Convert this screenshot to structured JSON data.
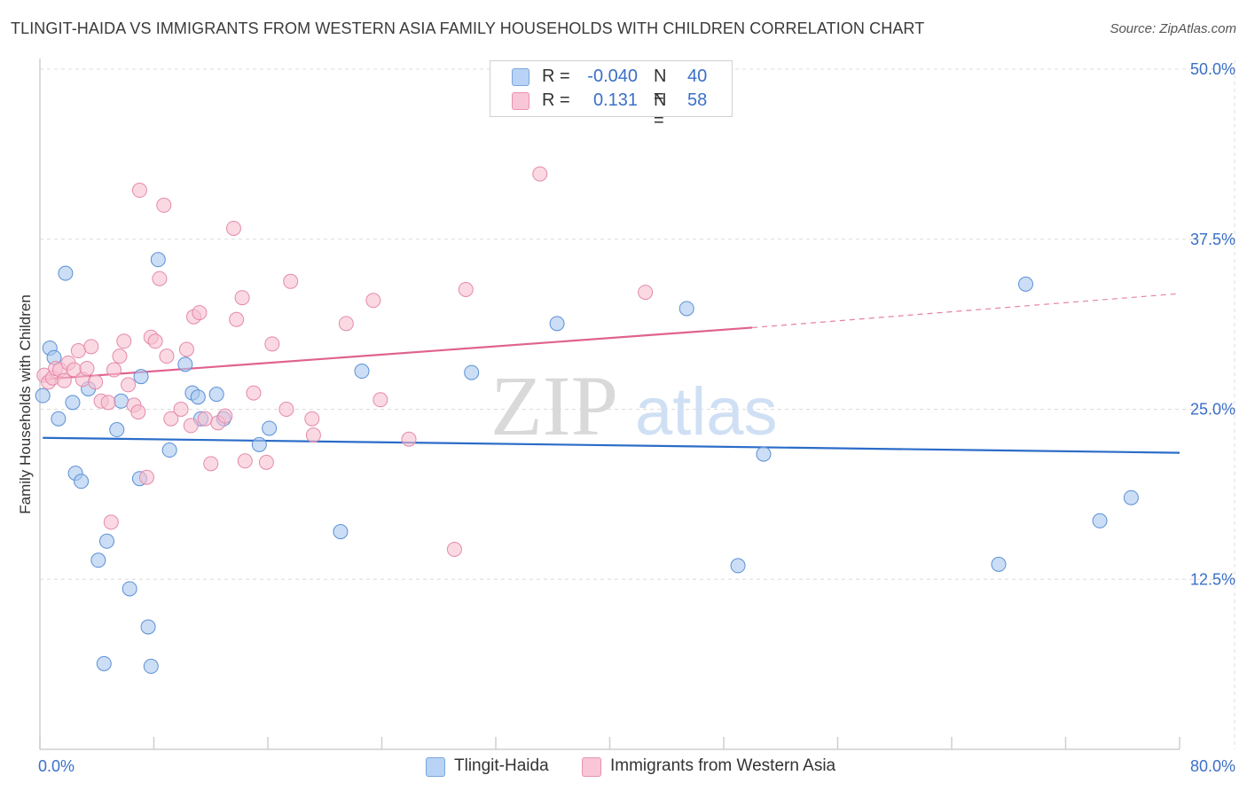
{
  "chart_data": {
    "type": "scatter",
    "title": "TLINGIT-HAIDA VS IMMIGRANTS FROM WESTERN ASIA FAMILY HOUSEHOLDS WITH CHILDREN CORRELATION CHART",
    "source": "Source: ZipAtlas.com",
    "ylabel": "Family Households with Children",
    "xlabel": "",
    "xlim": [
      0,
      80
    ],
    "ylim": [
      0,
      50
    ],
    "x_tick_labels": {
      "min": "0.0%",
      "max": "80.0%"
    },
    "y_ticks": [
      {
        "value": 12.5,
        "label": "12.5%"
      },
      {
        "value": 25.0,
        "label": "25.0%"
      },
      {
        "value": 37.5,
        "label": "37.5%"
      },
      {
        "value": 50.0,
        "label": "50.0%"
      }
    ],
    "watermark": {
      "zip": "ZIP",
      "atlas": "atlas"
    },
    "legend_stats": [
      {
        "r_label": "R =",
        "r_value": "-0.040",
        "n_label": "N =",
        "n_value": "40",
        "color": "#b8d3f5",
        "border": "#7aa6dd"
      },
      {
        "r_label": "R =",
        "r_value": "0.131",
        "n_label": "N =",
        "n_value": "58",
        "color": "#f8c6d6",
        "border": "#e893b0"
      }
    ],
    "series": [
      {
        "name": "Tlingit-Haida",
        "color": "#a9c8ee",
        "stroke": "#5b8fd6",
        "line_color": "#2b6cc8",
        "trend": {
          "x0": 0.2,
          "y0": 22.9,
          "x1": 80.0,
          "y1": 21.8,
          "dashed_from": null
        },
        "points": [
          [
            0.2,
            26.0
          ],
          [
            0.7,
            29.5
          ],
          [
            1.0,
            28.8
          ],
          [
            1.3,
            24.3
          ],
          [
            1.8,
            35.0
          ],
          [
            2.3,
            25.5
          ],
          [
            2.5,
            20.3
          ],
          [
            2.9,
            19.7
          ],
          [
            3.4,
            26.5
          ],
          [
            4.1,
            13.9
          ],
          [
            4.7,
            15.3
          ],
          [
            5.4,
            23.5
          ],
          [
            5.7,
            25.6
          ],
          [
            6.3,
            11.8
          ],
          [
            7.0,
            19.9
          ],
          [
            7.1,
            27.4
          ],
          [
            7.6,
            9.0
          ],
          [
            7.8,
            6.1
          ],
          [
            8.3,
            36.0
          ],
          [
            9.1,
            22.0
          ],
          [
            10.2,
            28.3
          ],
          [
            10.7,
            26.2
          ],
          [
            11.1,
            25.9
          ],
          [
            11.3,
            24.3
          ],
          [
            12.4,
            26.1
          ],
          [
            12.9,
            24.3
          ],
          [
            15.4,
            22.4
          ],
          [
            16.1,
            23.6
          ],
          [
            21.1,
            16.0
          ],
          [
            22.6,
            27.8
          ],
          [
            30.3,
            27.7
          ],
          [
            36.3,
            31.3
          ],
          [
            45.4,
            32.4
          ],
          [
            49.0,
            13.5
          ],
          [
            50.8,
            21.7
          ],
          [
            67.3,
            13.6
          ],
          [
            69.2,
            34.2
          ],
          [
            74.4,
            16.8
          ],
          [
            76.6,
            18.5
          ],
          [
            4.5,
            6.3
          ]
        ]
      },
      {
        "name": "Immigrants from Western Asia",
        "color": "#f7bfd1",
        "stroke": "#e58aaa",
        "line_color": "#e0628f",
        "trend": {
          "x0": 0.2,
          "y0": 27.2,
          "x1": 50.0,
          "y1": 31.0,
          "dashed_from": 50.0,
          "x2": 80.0,
          "y2": 33.5
        },
        "points": [
          [
            0.3,
            27.5
          ],
          [
            0.6,
            27.0
          ],
          [
            0.9,
            27.3
          ],
          [
            1.1,
            28.0
          ],
          [
            1.4,
            27.9
          ],
          [
            1.7,
            27.1
          ],
          [
            2.0,
            28.4
          ],
          [
            2.4,
            27.9
          ],
          [
            2.7,
            29.3
          ],
          [
            3.0,
            27.2
          ],
          [
            3.3,
            28.0
          ],
          [
            3.6,
            29.6
          ],
          [
            3.9,
            27.0
          ],
          [
            4.3,
            25.6
          ],
          [
            4.8,
            25.5
          ],
          [
            5.0,
            16.7
          ],
          [
            5.2,
            27.9
          ],
          [
            5.6,
            28.9
          ],
          [
            5.9,
            30.0
          ],
          [
            6.2,
            26.8
          ],
          [
            6.6,
            25.3
          ],
          [
            6.9,
            24.8
          ],
          [
            7.0,
            41.1
          ],
          [
            7.5,
            20.0
          ],
          [
            7.8,
            30.3
          ],
          [
            8.1,
            30.0
          ],
          [
            8.4,
            34.6
          ],
          [
            8.7,
            40.0
          ],
          [
            8.9,
            28.9
          ],
          [
            9.2,
            24.3
          ],
          [
            9.9,
            25.0
          ],
          [
            10.3,
            29.4
          ],
          [
            10.6,
            23.8
          ],
          [
            10.8,
            31.8
          ],
          [
            11.2,
            32.1
          ],
          [
            11.6,
            24.3
          ],
          [
            12.0,
            21.0
          ],
          [
            12.5,
            24.0
          ],
          [
            13.0,
            24.5
          ],
          [
            13.6,
            38.3
          ],
          [
            13.8,
            31.6
          ],
          [
            14.2,
            33.2
          ],
          [
            14.4,
            21.2
          ],
          [
            15.0,
            26.2
          ],
          [
            15.9,
            21.1
          ],
          [
            16.3,
            29.8
          ],
          [
            17.3,
            25.0
          ],
          [
            17.6,
            34.4
          ],
          [
            19.1,
            24.3
          ],
          [
            19.2,
            23.1
          ],
          [
            21.5,
            31.3
          ],
          [
            23.4,
            33.0
          ],
          [
            23.9,
            25.7
          ],
          [
            25.9,
            22.8
          ],
          [
            29.1,
            14.7
          ],
          [
            29.9,
            33.8
          ],
          [
            35.1,
            42.3
          ],
          [
            42.5,
            33.6
          ]
        ]
      }
    ]
  }
}
